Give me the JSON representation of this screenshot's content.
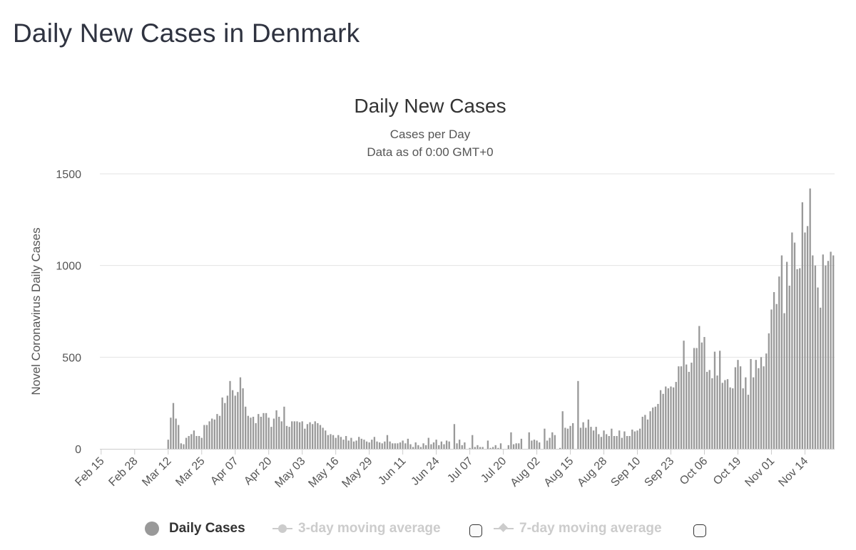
{
  "page": {
    "title": "Daily New Cases in Denmark"
  },
  "legend": {
    "daily_label": "Daily Cases",
    "ma3_label": "3-day moving average",
    "ma7_label": "7-day moving average",
    "colors": {
      "active": "#999999",
      "inactive": "#cccccc"
    }
  },
  "chart_data": {
    "type": "bar",
    "title": "Daily New Cases",
    "subtitle": [
      "Cases per Day",
      "Data as of 0:00 GMT+0"
    ],
    "ylabel": "Novel Coronavirus Daily Cases",
    "xlabel": "",
    "ylim": [
      0,
      1500
    ],
    "yticks": [
      0,
      500,
      1000,
      1500
    ],
    "grid": true,
    "bar_color": "#999999",
    "x_start": "Feb 15",
    "x_end": "Nov 15",
    "xtick_labels": [
      "Feb 15",
      "Feb 28",
      "Mar 12",
      "Mar 25",
      "Apr 07",
      "Apr 20",
      "May 03",
      "May 16",
      "May 29",
      "Jun 11",
      "Jun 24",
      "Jul 07",
      "Jul 20",
      "Aug 02",
      "Aug 15",
      "Aug 28",
      "Sep 10",
      "Sep 23",
      "Oct 06",
      "Oct 19",
      "Nov 01",
      "Nov 14"
    ],
    "series": [
      {
        "values": [
          0,
          0,
          0,
          0,
          0,
          0,
          0,
          0,
          0,
          0,
          0,
          0,
          0,
          0,
          0,
          0,
          0,
          0,
          0,
          0,
          0,
          0,
          0,
          0,
          0,
          0,
          50,
          170,
          250,
          165,
          130,
          30,
          25,
          60,
          70,
          80,
          100,
          70,
          70,
          60,
          130,
          130,
          150,
          165,
          160,
          190,
          180,
          280,
          250,
          290,
          370,
          320,
          290,
          310,
          390,
          330,
          230,
          180,
          170,
          175,
          140,
          190,
          175,
          195,
          195,
          170,
          120,
          165,
          210,
          175,
          150,
          230,
          125,
          120,
          150,
          150,
          150,
          145,
          150,
          110,
          135,
          145,
          135,
          150,
          140,
          130,
          115,
          100,
          75,
          80,
          75,
          60,
          75,
          65,
          50,
          70,
          45,
          60,
          40,
          45,
          65,
          55,
          50,
          40,
          35,
          50,
          65,
          40,
          35,
          30,
          40,
          75,
          40,
          30,
          30,
          30,
          35,
          45,
          30,
          55,
          25,
          10,
          35,
          20,
          10,
          30,
          20,
          60,
          25,
          35,
          50,
          20,
          40,
          25,
          45,
          40,
          0,
          135,
          30,
          50,
          20,
          35,
          0,
          5,
          75,
          10,
          20,
          10,
          10,
          0,
          45,
          5,
          10,
          20,
          5,
          30,
          0,
          0,
          20,
          90,
          25,
          30,
          30,
          55,
          0,
          0,
          90,
          45,
          50,
          45,
          35,
          0,
          110,
          45,
          60,
          90,
          75,
          0,
          5,
          205,
          115,
          110,
          125,
          140,
          0,
          370,
          115,
          145,
          115,
          160,
          120,
          100,
          120,
          80,
          65,
          100,
          80,
          70,
          110,
          70,
          70,
          100,
          60,
          95,
          70,
          70,
          105,
          95,
          100,
          110,
          175,
          185,
          160,
          205,
          225,
          230,
          245,
          320,
          300,
          340,
          330,
          340,
          335,
          365,
          450,
          450,
          590,
          460,
          420,
          470,
          550,
          550,
          670,
          580,
          610,
          420,
          430,
          385,
          530,
          400,
          535,
          360,
          375,
          380,
          335,
          330,
          445,
          485,
          450,
          330,
          390,
          295,
          490,
          390,
          485,
          440,
          500,
          450,
          520,
          630,
          760,
          855,
          790,
          940,
          1055,
          740,
          1020,
          890,
          1180,
          1125,
          980,
          985,
          1345,
          1180,
          1215,
          1420,
          1055,
          1000,
          880,
          770,
          1060,
          1000,
          1025,
          1075,
          1055
        ]
      }
    ]
  }
}
